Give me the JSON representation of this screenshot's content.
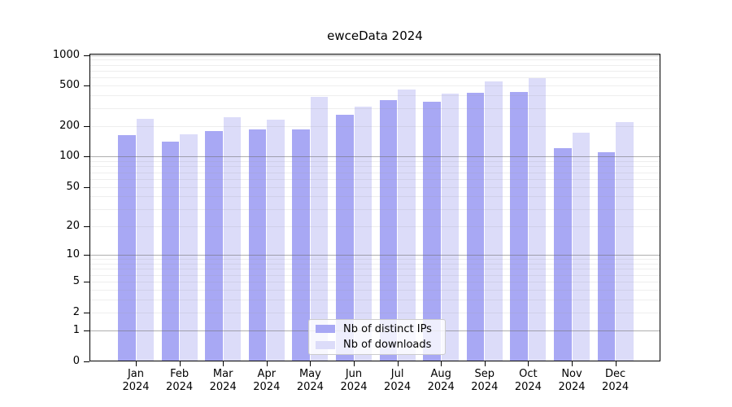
{
  "chart_data": {
    "type": "bar",
    "title": "ewceData 2024",
    "categories": [
      "Jan 2024",
      "Feb 2024",
      "Mar 2024",
      "Apr 2024",
      "May 2024",
      "Jun 2024",
      "Jul 2024",
      "Aug 2024",
      "Sep 2024",
      "Oct 2024",
      "Nov 2024",
      "Dec 2024"
    ],
    "x_tick_labels": [
      [
        "Jan",
        "2024"
      ],
      [
        "Feb",
        "2024"
      ],
      [
        "Mar",
        "2024"
      ],
      [
        "Apr",
        "2024"
      ],
      [
        "May",
        "2024"
      ],
      [
        "Jun",
        "2024"
      ],
      [
        "Jul",
        "2024"
      ],
      [
        "Aug",
        "2024"
      ],
      [
        "Sep",
        "2024"
      ],
      [
        "Oct",
        "2024"
      ],
      [
        "Nov",
        "2024"
      ],
      [
        "Dec",
        "2024"
      ]
    ],
    "series": [
      {
        "name": "Nb of distinct IPs",
        "color": "#a8a8f4",
        "values": [
          164,
          140,
          178,
          186,
          186,
          260,
          363,
          345,
          428,
          436,
          122,
          111
        ]
      },
      {
        "name": "Nb of downloads",
        "color": "#dcdcf9",
        "values": [
          236,
          167,
          243,
          232,
          388,
          311,
          455,
          418,
          551,
          593,
          173,
          219
        ]
      }
    ],
    "y_axis": {
      "scale": "log10(value+1)",
      "tick_values": [
        1000,
        500,
        200,
        100,
        50,
        20,
        10,
        5,
        2,
        1,
        0
      ],
      "tick_labels": [
        "1000",
        "500",
        "200",
        "100",
        "50",
        "20",
        "10",
        "5",
        "2",
        "1",
        "0"
      ],
      "range": [
        0,
        1020
      ],
      "grid": "horizontal; gray lines at powers of 10, faint lines at other decade multiples"
    },
    "legend_position": "bottom-center-inside",
    "colors": {
      "distinct_ips_bar": "#a8a8f4",
      "downloads_bar": "#dcdcf9",
      "frame": "#000000",
      "major_grid": "#9a9a9a",
      "minor_grid": "#e9e9e9",
      "legend_border": "#cccccc"
    }
  }
}
